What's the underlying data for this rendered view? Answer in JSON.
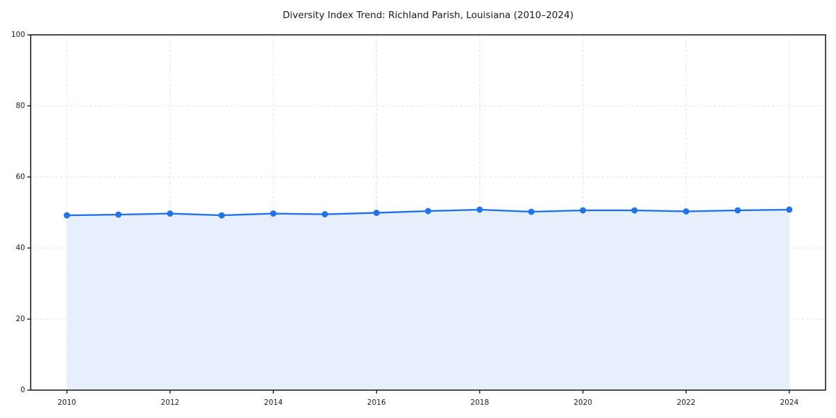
{
  "page": {
    "background": "#ffffff"
  },
  "chart_data": {
    "type": "line",
    "title": "Diversity Index Trend: Richland Parish, Louisiana (2010–2024)",
    "x": [
      2010,
      2011,
      2012,
      2013,
      2014,
      2015,
      2016,
      2017,
      2018,
      2019,
      2020,
      2021,
      2022,
      2023,
      2024
    ],
    "series": [
      {
        "name": "Diversity Index",
        "values": [
          49.2,
          49.4,
          49.7,
          49.2,
          49.7,
          49.5,
          49.9,
          50.4,
          50.8,
          50.2,
          50.6,
          50.6,
          50.3,
          50.6,
          50.8
        ]
      }
    ],
    "xlabel": "",
    "ylabel": "",
    "ylim": [
      0,
      100
    ],
    "y_ticks": [
      0,
      20,
      40,
      60,
      80,
      100
    ],
    "x_tick_labels": [
      "2010",
      "2012",
      "2014",
      "2016",
      "2018",
      "2020",
      "2022",
      "2024"
    ],
    "grid": "dashed",
    "legend_position": "none",
    "marker": "circle",
    "colors": {
      "line": "#2273e6",
      "marker": "#2273e6",
      "area_fill": "#e7effc",
      "grid": "#e2e2e2",
      "axis": "#000000",
      "text": "#1a1a1a"
    }
  }
}
